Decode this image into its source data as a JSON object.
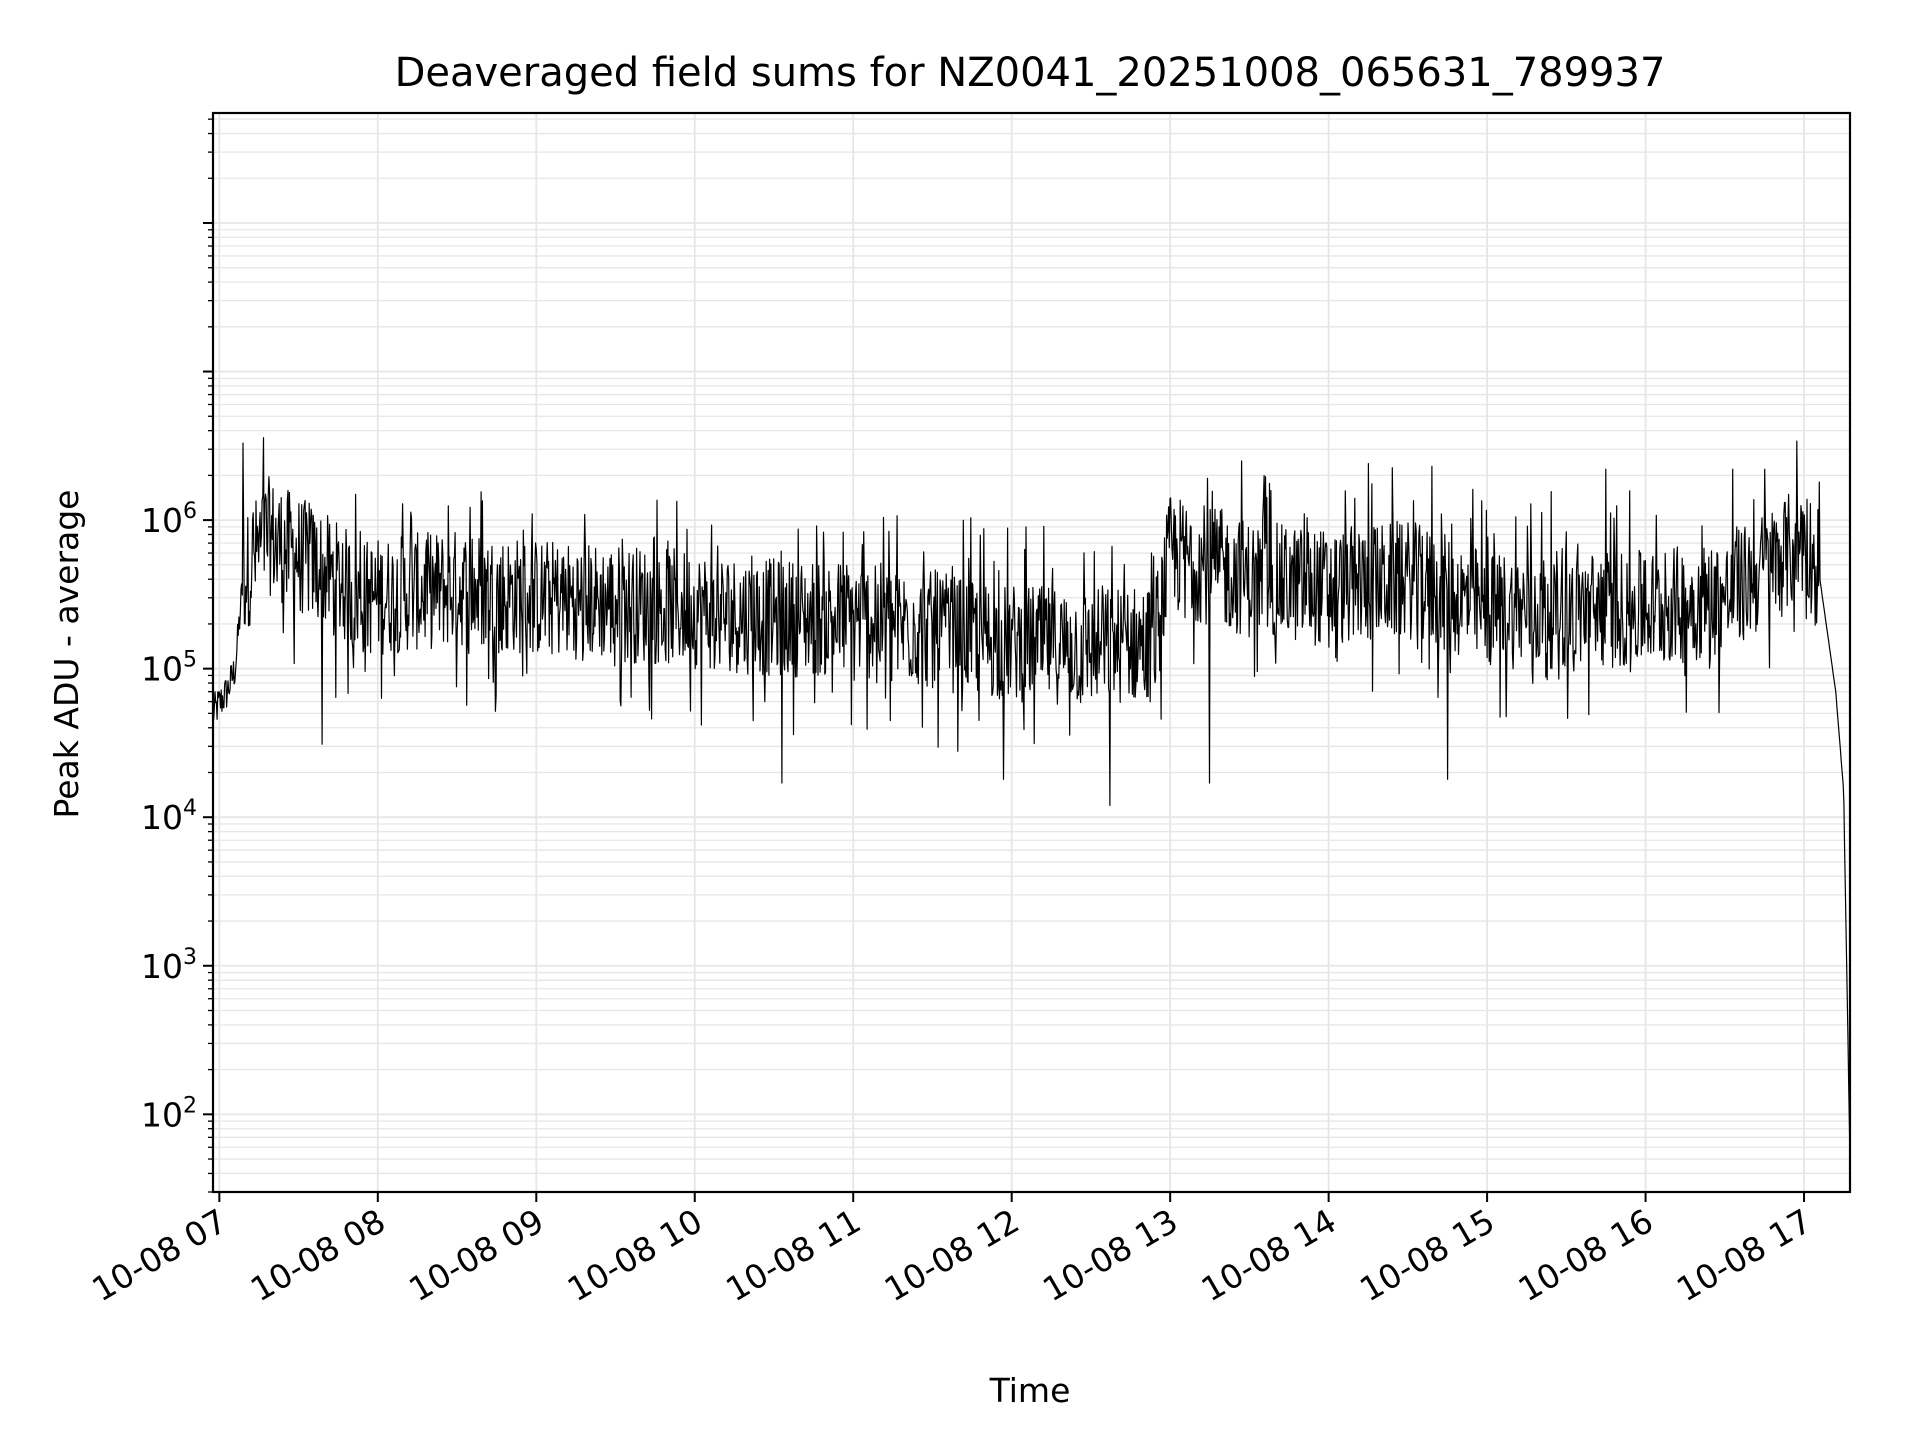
{
  "chart_data": {
    "type": "line",
    "title": "Deaveraged field sums for NZ0041_20251008_065631_789937",
    "xlabel": "Time",
    "ylabel": "Peak ADU - average",
    "yscale": "log",
    "ylim": [
      30,
      550000000
    ],
    "xlim_hours": [
      6.96,
      17.29
    ],
    "grid": true,
    "x_tick_labels": [
      "10-08 07",
      "10-08 08",
      "10-08 09",
      "10-08 10",
      "10-08 11",
      "10-08 12",
      "10-08 13",
      "10-08 14",
      "10-08 15",
      "10-08 16",
      "10-08 17"
    ],
    "x_tick_hours": [
      7,
      8,
      9,
      10,
      11,
      12,
      13,
      14,
      15,
      16,
      17
    ],
    "y_ticks": [
      {
        "base": "10",
        "exp": "2",
        "value": 100
      },
      {
        "base": "10",
        "exp": "3",
        "value": 1000
      },
      {
        "base": "10",
        "exp": "4",
        "value": 10000
      },
      {
        "base": "10",
        "exp": "5",
        "value": 100000
      },
      {
        "base": "10",
        "exp": "6",
        "value": 1000000
      }
    ],
    "series": [
      {
        "name": "field sums",
        "color": "#000000",
        "envelope_hours": [
          6.96,
          7.05,
          7.1,
          7.15,
          7.3,
          7.6,
          7.9,
          8.5,
          9.0,
          9.5,
          10.0,
          10.5,
          11.0,
          11.5,
          12.0,
          12.5,
          12.9,
          13.0,
          13.5,
          14.0,
          14.5,
          15.0,
          15.5,
          16.0,
          16.5,
          16.9,
          17.0,
          17.1,
          17.2,
          17.25,
          17.29
        ],
        "envelope_median": [
          50000,
          70000,
          100000,
          400000,
          800000,
          500000,
          300000,
          350000,
          300000,
          280000,
          250000,
          220000,
          220000,
          180000,
          150000,
          140000,
          150000,
          600000,
          400000,
          350000,
          400000,
          250000,
          250000,
          250000,
          300000,
          600000,
          800000,
          400000,
          70000,
          15000,
          50
        ],
        "peaks": [
          {
            "hour": 7.15,
            "value": 3300000
          },
          {
            "hour": 13.45,
            "value": 2500000
          },
          {
            "hour": 14.25,
            "value": 2400000
          },
          {
            "hour": 14.65,
            "value": 2300000
          },
          {
            "hour": 15.75,
            "value": 2200000
          },
          {
            "hour": 16.55,
            "value": 2200000
          },
          {
            "hour": 16.75,
            "value": 2200000
          }
        ],
        "troughs": [
          {
            "hour": 7.65,
            "value": 31000
          },
          {
            "hour": 10.55,
            "value": 17000
          },
          {
            "hour": 11.95,
            "value": 18000
          },
          {
            "hour": 12.62,
            "value": 12000
          },
          {
            "hour": 13.25,
            "value": 17000
          },
          {
            "hour": 14.75,
            "value": 18000
          },
          {
            "hour": 17.29,
            "value": 50
          }
        ]
      }
    ]
  }
}
